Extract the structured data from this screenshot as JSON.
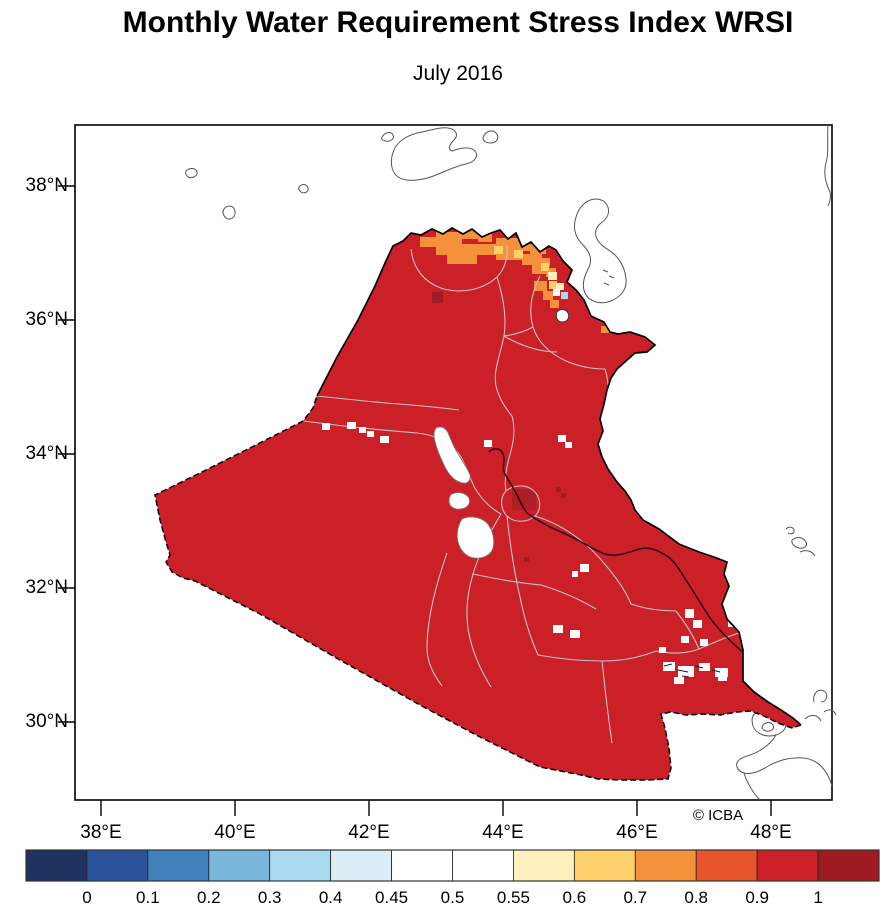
{
  "title": "Monthly Water Requirement Stress Index WRSI",
  "subtitle": "July 2016",
  "attribution": "© ICBA",
  "axes": {
    "lat_ticks": [
      "38°N",
      "36°N",
      "34°N",
      "32°N",
      "30°N"
    ],
    "lon_ticks": [
      "38°E",
      "40°E",
      "42°E",
      "44°E",
      "46°E",
      "48°E"
    ]
  },
  "colorbar": {
    "tick_labels": [
      "0",
      "0.1",
      "0.2",
      "0.3",
      "0.4",
      "0.45",
      "0.5",
      "0.55",
      "0.6",
      "0.7",
      "0.8",
      "0.9",
      "1"
    ],
    "colors": [
      "#20325f",
      "#2a539b",
      "#4182bd",
      "#79b7dd",
      "#aadaf0",
      "#daeef8",
      "#ffffff",
      "#ffffff",
      "#fdf0bc",
      "#fdd06a",
      "#f5913b",
      "#e8542c",
      "#cb2027",
      "#9e1b23"
    ]
  },
  "colors": {
    "map_fill_dominant": "#cb2027",
    "map_fill_high": "#9e1b23",
    "north_strip_orange": "#f5913b",
    "light_orange": "#fdd06a",
    "pale_yellow": "#fdf0bc",
    "light_blue_cell": "#aadaf0",
    "governorate_line": "#c4c4c4",
    "country_outline": "#000000",
    "basemap_outline": "#555555",
    "river": "#2b0b10"
  },
  "chart_data": {
    "type": "heatmap",
    "title": "Monthly Water Requirement Stress Index WRSI",
    "subtitle": "July 2016",
    "region": "Iraq (choropleth of gridded WRSI values, governorate boundaries overlaid; neighboring lakes and Gulf coast drawn as outlines)",
    "x_axis": {
      "tick_labels": [
        "38°E",
        "40°E",
        "42°E",
        "44°E",
        "46°E",
        "48°E"
      ],
      "range_deg_e": [
        37.6,
        48.9
      ]
    },
    "y_axis": {
      "tick_labels": [
        "38°N",
        "36°N",
        "34°N",
        "32°N",
        "30°N"
      ],
      "range_deg_n": [
        28.9,
        38.9
      ]
    },
    "colorbar": {
      "bin_edges": [
        0,
        0.1,
        0.2,
        0.3,
        0.4,
        0.45,
        0.5,
        0.55,
        0.6,
        0.7,
        0.8,
        0.9,
        1
      ],
      "colors": [
        "#20325f",
        "#2a539b",
        "#4182bd",
        "#79b7dd",
        "#aadaf0",
        "#daeef8",
        "#ffffff",
        "#ffffff",
        "#fdf0bc",
        "#fdd06a",
        "#f5913b",
        "#e8542c",
        "#cb2027",
        "#9e1b23"
      ],
      "orientation": "horizontal-bottom"
    },
    "values_summary": [
      {
        "area": "most of Iraq",
        "wrsi_bin": "0.9–1.0 (red)"
      },
      {
        "area": "northern border strip along Turkey (Ninewa/Dahuk/Erbil)",
        "wrsi_bin": "0.8–0.9 (orange)"
      },
      {
        "area": "far-northeast pockets near Turkey/Iran corner",
        "wrsi_bin": "0.3–0.8 (blue/white/yellow/light-orange cells)"
      },
      {
        "area": "isolated grid cells (NW of Mosul, near Baghdad)",
        "wrsi_bin": "1.0 (dark red)"
      },
      {
        "area": "lakes (Tharthar, Habbaniyah, Razzaza), marshes and scattered cells",
        "wrsi_bin": "no data (white)"
      }
    ],
    "attribution": "© ICBA"
  }
}
